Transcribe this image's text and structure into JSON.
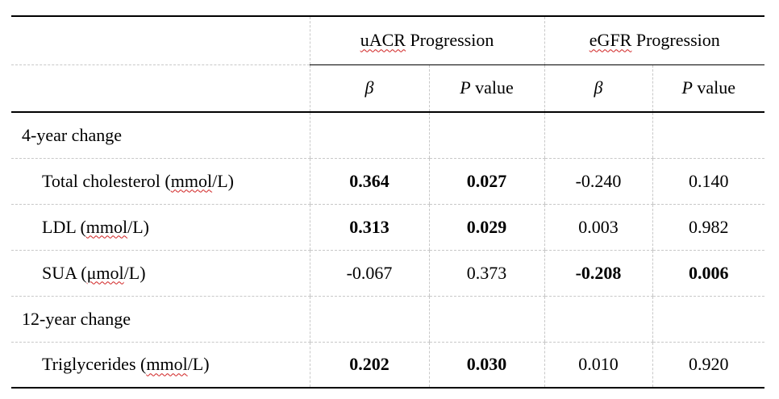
{
  "header": {
    "group_uacr": "uACR Progression",
    "group_uacr_abbr": "uACR",
    "group_uacr_rest": " Progression",
    "group_egfr": "eGFR Progression",
    "group_egfr_abbr": "eGFR",
    "group_egfr_rest": " Progression",
    "beta": "β",
    "p_letter": "P",
    "p_rest": " value"
  },
  "sections": [
    {
      "label": "4-year change",
      "rows": [
        {
          "name_pre": "Total cholesterol (",
          "unit": "mmol",
          "name_post": "/L)",
          "uacr_beta": "0.364",
          "uacr_p": "0.027",
          "egfr_beta": "-0.240",
          "egfr_p": "0.140",
          "bold": [
            true,
            true,
            false,
            false
          ]
        },
        {
          "name_pre": "LDL (",
          "unit": "mmol",
          "name_post": "/L)",
          "uacr_beta": "0.313",
          "uacr_p": "0.029",
          "egfr_beta": "0.003",
          "egfr_p": "0.982",
          "bold": [
            true,
            true,
            false,
            false
          ]
        },
        {
          "name_pre": "SUA (",
          "unit": "μmol",
          "name_post": "/L)",
          "uacr_beta": "-0.067",
          "uacr_p": "0.373",
          "egfr_beta": "-0.208",
          "egfr_p": "0.006",
          "bold": [
            false,
            false,
            true,
            true
          ]
        }
      ]
    },
    {
      "label": "12-year change",
      "rows": [
        {
          "name_pre": "Triglycerides (",
          "unit": "mmol",
          "name_post": "/L)",
          "uacr_beta": "0.202",
          "uacr_p": "0.030",
          "egfr_beta": "0.010",
          "egfr_p": "0.920",
          "bold": [
            true,
            true,
            false,
            false
          ]
        }
      ]
    }
  ],
  "colors": {
    "rule": "#000000",
    "grid_dashed": "#c8c8c8",
    "spellcheck_squiggle": "#d02020"
  }
}
